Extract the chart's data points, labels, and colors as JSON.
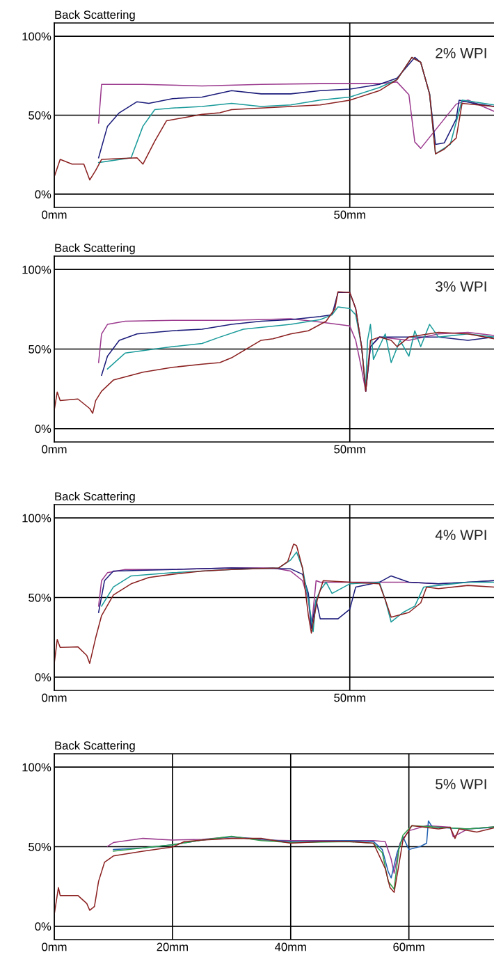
{
  "chart_data": [
    {
      "type": "line",
      "ylabel": "Back Scattering",
      "annotations": [
        "2% WPI"
      ],
      "xlim": [
        0,
        74.4
      ],
      "ylim": [
        -8.4,
        108.4
      ],
      "xticks": [
        {
          "value": 0,
          "label": "0mm"
        },
        {
          "value": 50,
          "label": "50mm"
        }
      ],
      "yticks": [
        {
          "value": 0,
          "label": "0%"
        },
        {
          "value": 50,
          "label": "50%"
        },
        {
          "value": 100,
          "label": "100%"
        }
      ],
      "grid": true,
      "series": [
        {
          "color": "#9b3a8e",
          "x": [
            7.5,
            8,
            15,
            25,
            35,
            45,
            55,
            58,
            60,
            61,
            62,
            68,
            70,
            74.4
          ],
          "values": [
            45,
            69.5,
            69.5,
            68.5,
            69.5,
            70,
            70,
            71,
            63,
            33,
            29,
            57,
            59.6,
            52.5
          ]
        },
        {
          "color": "#1a1a7a",
          "x": [
            7.5,
            9,
            11,
            14,
            16,
            20,
            25,
            30,
            35,
            40,
            45,
            50,
            55,
            58,
            61,
            62,
            63.5,
            64.5,
            66,
            68,
            68.5,
            71,
            74.4
          ],
          "values": [
            23,
            43,
            51.5,
            58.5,
            57.5,
            60.5,
            61.5,
            65.5,
            63.5,
            63.5,
            65.5,
            66.5,
            69.5,
            73.5,
            86.6,
            83.5,
            63.5,
            31.5,
            32.5,
            47.5,
            59.5,
            57.5,
            55.5
          ]
        },
        {
          "color": "#1a9a9a",
          "x": [
            7.5,
            13,
            15,
            17,
            20,
            25,
            30,
            35,
            40,
            45,
            50,
            55,
            58,
            60.5,
            62,
            63.5,
            64.5,
            67,
            69,
            74.4
          ],
          "values": [
            20,
            23,
            43,
            53.5,
            54.5,
            55.5,
            57.5,
            55.5,
            56.5,
            59.6,
            61.5,
            67.5,
            72.5,
            86.6,
            83.5,
            63.5,
            25.5,
            31.5,
            59.6,
            56.5
          ]
        },
        {
          "color": "#8b2020",
          "x": [
            0,
            1,
            3,
            5,
            6,
            7,
            8,
            14,
            15,
            17,
            19,
            22,
            25,
            28,
            30,
            35,
            40,
            45,
            50,
            55,
            58,
            60.5,
            62,
            63.5,
            64.5,
            66,
            68,
            69,
            74.4
          ],
          "values": [
            11,
            22,
            19,
            19,
            9,
            15,
            22,
            23,
            19,
            33.5,
            46.5,
            48.5,
            50.5,
            51.5,
            53.5,
            54.5,
            55.5,
            56.5,
            59.5,
            65.5,
            72.5,
            86.6,
            83.5,
            63.5,
            25.5,
            28.5,
            35.5,
            57.5,
            55.5
          ]
        }
      ]
    },
    {
      "type": "line",
      "ylabel": "Back Scattering",
      "annotations": [
        "3% WPI"
      ],
      "xlim": [
        0,
        74.4
      ],
      "ylim": [
        -8.4,
        108.4
      ],
      "xticks": [
        {
          "value": 0,
          "label": "0mm"
        },
        {
          "value": 50,
          "label": "50mm"
        }
      ],
      "yticks": [
        {
          "value": 0,
          "label": "0%"
        },
        {
          "value": 50,
          "label": "50%"
        },
        {
          "value": 100,
          "label": "100%"
        }
      ],
      "grid": true,
      "series": [
        {
          "color": "#9b3a8e",
          "x": [
            7.5,
            8,
            9,
            12,
            20,
            30,
            40,
            45,
            50,
            51,
            52,
            52.7,
            53.5,
            55,
            60,
            65,
            70,
            74.4
          ],
          "values": [
            41.5,
            59.5,
            65.5,
            67.5,
            68,
            68,
            69,
            67,
            64.5,
            55.5,
            37.5,
            23.5,
            51.5,
            57.5,
            55.5,
            59.5,
            60.5,
            58.5
          ]
        },
        {
          "color": "#1a1a7a",
          "x": [
            8,
            9,
            11,
            14,
            20,
            25,
            30,
            35,
            40,
            45,
            47,
            48,
            50,
            51,
            52,
            52.7,
            53.5,
            55,
            60,
            65,
            70,
            74.4
          ],
          "values": [
            33.5,
            45.5,
            55.5,
            59.5,
            61.5,
            62.5,
            65.5,
            67.5,
            68.5,
            70.5,
            71.5,
            85.5,
            85.5,
            75.5,
            51.5,
            23.5,
            51.5,
            57.5,
            57.5,
            57.5,
            55.5,
            57.5
          ]
        },
        {
          "color": "#1a9a9a",
          "x": [
            9,
            12,
            20,
            25,
            28,
            32,
            40,
            45,
            47,
            48,
            50,
            51,
            52,
            52.7,
            53,
            53.5,
            54,
            56,
            57,
            58.5,
            60,
            61,
            62,
            63.5,
            65,
            70,
            74.4
          ],
          "values": [
            37.5,
            47.5,
            51.5,
            53.5,
            57.5,
            62.5,
            65.5,
            68.5,
            71.5,
            76.5,
            75.5,
            71.5,
            51.5,
            25.5,
            55.5,
            65.5,
            43.5,
            59.5,
            41.5,
            55.5,
            45.5,
            61.5,
            51.5,
            65.5,
            57.5,
            59.5,
            57.5
          ]
        },
        {
          "color": "#8b2020",
          "x": [
            0,
            0.5,
            1,
            4,
            6,
            6.5,
            7,
            8,
            10,
            15,
            20,
            25,
            28,
            30,
            35,
            37,
            40,
            43,
            46,
            47.5,
            48,
            50,
            51,
            52,
            52.7,
            53.5,
            55,
            57,
            58,
            60,
            65,
            70,
            74.4
          ],
          "values": [
            11.6,
            23,
            17.6,
            18.6,
            12.6,
            9.6,
            17.6,
            23.5,
            30.5,
            35.5,
            38.5,
            40.5,
            41.5,
            44.5,
            55.5,
            56.5,
            59.5,
            61.5,
            67.5,
            75.5,
            86,
            85.5,
            75.5,
            51.5,
            23.5,
            55.5,
            57.5,
            55.5,
            51.5,
            57.5,
            60.5,
            59.5,
            56.5
          ]
        }
      ]
    },
    {
      "type": "line",
      "ylabel": "Back Scattering",
      "annotations": [
        "4% WPI"
      ],
      "xlim": [
        0,
        74.4
      ],
      "ylim": [
        -8.4,
        108.4
      ],
      "xticks": [
        {
          "value": 0,
          "label": "0mm"
        },
        {
          "value": 50,
          "label": "50mm"
        }
      ],
      "yticks": [
        {
          "value": 0,
          "label": "0%"
        },
        {
          "value": 50,
          "label": "50%"
        },
        {
          "value": 100,
          "label": "100%"
        }
      ],
      "grid": true,
      "series": [
        {
          "color": "#9b3a8e",
          "x": [
            7.5,
            8,
            9,
            12,
            20,
            30,
            37,
            40,
            42,
            43,
            43.5,
            44.3,
            45,
            50,
            55,
            60,
            65,
            70,
            74.4
          ],
          "values": [
            44.6,
            60.6,
            65.6,
            67.6,
            67.6,
            68.6,
            68.6,
            66.6,
            60.6,
            48.6,
            30.6,
            60.6,
            59.6,
            59.6,
            59.6,
            59.6,
            58.6,
            59.6,
            60.6
          ]
        },
        {
          "color": "#1a1a7a",
          "x": [
            7.5,
            8.5,
            10,
            20,
            30,
            40,
            42,
            43,
            43.5,
            44.3,
            45,
            48,
            50,
            51,
            55,
            57,
            60,
            65,
            70,
            74.4
          ],
          "values": [
            40.6,
            60.6,
            66.6,
            67.6,
            68.6,
            68,
            64.6,
            52.6,
            30.6,
            48.6,
            36.6,
            36.6,
            42.6,
            56.6,
            59.6,
            63.6,
            59.6,
            58.6,
            59.6,
            60.6
          ]
        },
        {
          "color": "#1a9a9a",
          "x": [
            8,
            10,
            13,
            20,
            30,
            38,
            40,
            41,
            42,
            43,
            43.8,
            44.3,
            45,
            46,
            47,
            50,
            55,
            56,
            57,
            59,
            61,
            62.5,
            65,
            70,
            74.4
          ],
          "values": [
            44.6,
            56.6,
            63.6,
            65.6,
            67.6,
            68.6,
            73.6,
            78.6,
            68.6,
            48.6,
            28.6,
            48.6,
            54.6,
            59.6,
            52.6,
            58.6,
            59.6,
            48.6,
            34.6,
            40.6,
            44.6,
            56.6,
            57.6,
            59.6,
            59.6
          ]
        },
        {
          "color": "#8b2020",
          "x": [
            0,
            0.5,
            1,
            4,
            5.5,
            6,
            7,
            8,
            10,
            13,
            16,
            20,
            25,
            30,
            38,
            39.5,
            40.5,
            41,
            42,
            43,
            43.5,
            44.5,
            45.5,
            50,
            55,
            56,
            57,
            60,
            62,
            63,
            65,
            70,
            74.4
          ],
          "values": [
            8.6,
            23.6,
            18.6,
            19,
            13.6,
            8.6,
            24.6,
            38.6,
            51.6,
            58.6,
            62.6,
            64.6,
            66.6,
            67.6,
            68.6,
            72.6,
            83.6,
            82.6,
            68.6,
            38.6,
            27.6,
            48.6,
            60.6,
            59.6,
            58.6,
            48.6,
            37.6,
            40.6,
            46.6,
            56.6,
            55.6,
            57.6,
            56.6
          ]
        }
      ]
    },
    {
      "type": "line",
      "ylabel": "Back Scattering",
      "annotations": [
        "5% WPI"
      ],
      "xlim": [
        0,
        74.4
      ],
      "ylim": [
        -8.4,
        108.4
      ],
      "xticks": [
        {
          "value": 0,
          "label": "0mm"
        },
        {
          "value": 20,
          "label": "20mm"
        },
        {
          "value": 40,
          "label": "40mm"
        },
        {
          "value": 60,
          "label": "60mm"
        }
      ],
      "yticks": [
        {
          "value": 0,
          "label": "0%"
        },
        {
          "value": 50,
          "label": "50%"
        },
        {
          "value": 100,
          "label": "100%"
        }
      ],
      "grid": true,
      "series": [
        {
          "color": "#9b3a8e",
          "x": [
            9,
            10,
            15,
            20,
            25,
            30,
            35,
            40,
            50,
            54,
            56,
            57,
            57.5,
            58.5,
            60,
            63,
            67,
            67.5,
            70,
            74.4
          ],
          "values": [
            50.2,
            52.6,
            55.2,
            54.2,
            54.6,
            56.2,
            54.2,
            53.8,
            53.8,
            53.8,
            53.2,
            42.2,
            33.3,
            52.2,
            60,
            63.2,
            62.2,
            56.2,
            61.2,
            62.5
          ]
        },
        {
          "color": "#2060b0",
          "x": [
            10,
            15,
            20,
            25,
            30,
            40,
            50,
            54,
            55.5,
            56.5,
            57,
            58,
            59,
            60,
            62,
            63,
            63.3,
            64,
            70,
            74.4
          ],
          "values": [
            48.2,
            49.2,
            51.2,
            54.2,
            56.2,
            53.2,
            53.8,
            53.2,
            48.2,
            34.3,
            30.3,
            46.2,
            56.2,
            48.2,
            50.2,
            52.2,
            66.2,
            62.2,
            61.2,
            62.2
          ]
        },
        {
          "color": "#2e9e4a",
          "x": [
            10,
            15,
            20,
            25,
            30,
            35,
            40,
            50,
            54,
            55.5,
            56.5,
            57.5,
            58.3,
            59,
            60.5,
            65,
            70,
            74.4
          ],
          "values": [
            47.2,
            49.2,
            51.2,
            54.2,
            56.6,
            53.8,
            52.6,
            53.2,
            52.2,
            46.2,
            28.3,
            23.3,
            48.2,
            57.2,
            63.2,
            62.2,
            61.2,
            62.5
          ]
        },
        {
          "color": "#8b2020",
          "x": [
            0,
            0.7,
            1,
            4,
            5.5,
            6,
            6.8,
            7.5,
            8.5,
            10,
            15,
            20,
            22,
            25,
            30,
            35,
            40,
            45,
            50,
            54,
            56,
            56.8,
            57.5,
            58.2,
            59,
            60.5,
            65,
            67,
            67.8,
            68.5,
            71.5,
            74.4
          ],
          "values": [
            7.4,
            24.3,
            19.3,
            19.3,
            14.3,
            10,
            12.4,
            28.3,
            40.2,
            44.2,
            47.2,
            49.8,
            53.2,
            54.2,
            55.2,
            55.2,
            52.2,
            53.2,
            53.2,
            52.2,
            36.3,
            24.3,
            21.3,
            36.3,
            54.2,
            63.2,
            61.2,
            62.2,
            55.2,
            61.2,
            59.2,
            61.8
          ]
        }
      ]
    }
  ]
}
